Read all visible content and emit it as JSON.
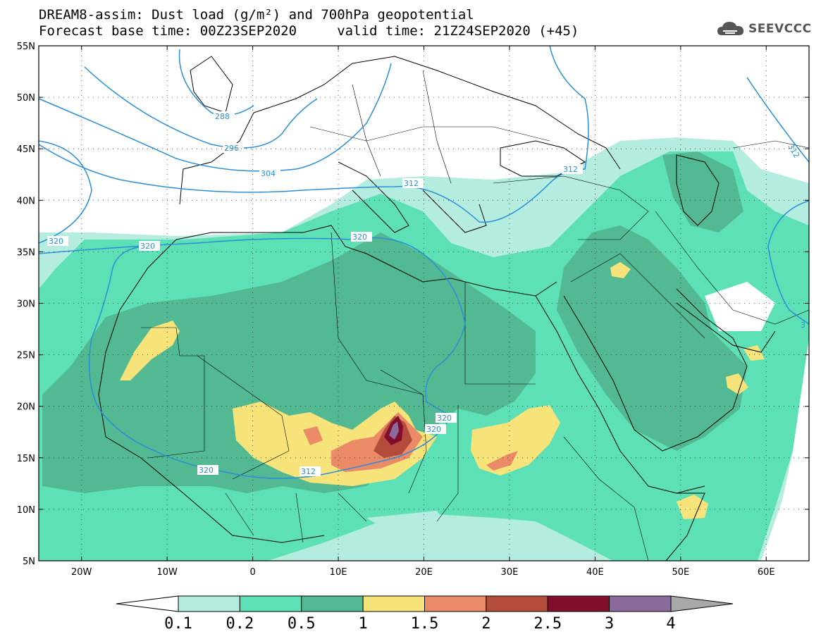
{
  "title": {
    "line1": "DREAM8-assim: Dust load (g/m²) and 700hPa geopotential",
    "line2": "Forecast base time: 00Z23SEP2020     valid time: 21Z24SEP2020 (+45)"
  },
  "logo": {
    "text": "SEEVCCC",
    "icon": "cloud-logo-icon"
  },
  "map": {
    "lon_range": [
      -25,
      65
    ],
    "lat_range": [
      5,
      55
    ],
    "lat_labels": [
      "55N",
      "50N",
      "45N",
      "40N",
      "35N",
      "30N",
      "25N",
      "20N",
      "15N",
      "10N",
      "5N"
    ],
    "lon_labels": [
      "20W",
      "10W",
      "0",
      "10E",
      "20E",
      "30E",
      "40E",
      "50E",
      "60E"
    ],
    "lat_values": [
      55,
      50,
      45,
      40,
      35,
      30,
      25,
      20,
      15,
      10,
      5
    ],
    "lon_values": [
      -20,
      -10,
      0,
      10,
      20,
      30,
      40,
      50,
      60
    ],
    "contour_labels": [
      "288",
      "296",
      "304",
      "312",
      "312",
      "312",
      "320",
      "320",
      "320",
      "320",
      "320",
      "320",
      "312",
      "3"
    ],
    "contour_color": "#2a8ed8"
  },
  "colorbar": {
    "levels": [
      "0.1",
      "0.2",
      "0.5",
      "1",
      "1.5",
      "2",
      "2.5",
      "3",
      "4"
    ],
    "colors": [
      "#b4ece0",
      "#5ee0b6",
      "#52b992",
      "#f6e47a",
      "#ea8a66",
      "#b44c3c",
      "#800e2c",
      "#8c6a9c",
      "#a8a8a8"
    ]
  }
}
